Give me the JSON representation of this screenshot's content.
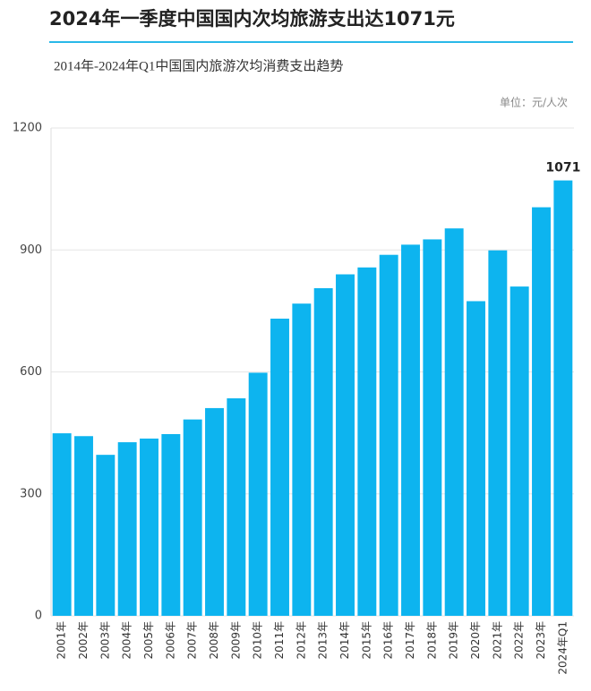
{
  "chart_data": {
    "type": "bar",
    "title": "2024年一季度中国国内次均旅游支出达1071元",
    "subtitle": "2014年-2024年Q1中国国内旅游次均消费支出趋势",
    "unit": "单位：元/人次",
    "categories": [
      "2001年",
      "2002年",
      "2003年",
      "2004年",
      "2005年",
      "2006年",
      "2007年",
      "2008年",
      "2009年",
      "2010年",
      "2011年",
      "2012年",
      "2013年",
      "2014年",
      "2015年",
      "2016年",
      "2017年",
      "2018年",
      "2019年",
      "2020年",
      "2021年",
      "2022年",
      "2023年",
      "2024年Q1"
    ],
    "values": [
      449,
      442,
      396,
      427,
      436,
      447,
      483,
      511,
      535,
      598,
      731,
      768,
      806,
      840,
      857,
      888,
      913,
      926,
      953,
      774,
      899,
      810,
      1005,
      1071
    ],
    "labeled": [
      23
    ],
    "color": "#0db4ef",
    "ylim": [
      0,
      1200
    ],
    "yticks": [
      0,
      300,
      600,
      900,
      1200
    ],
    "grid": true
  }
}
